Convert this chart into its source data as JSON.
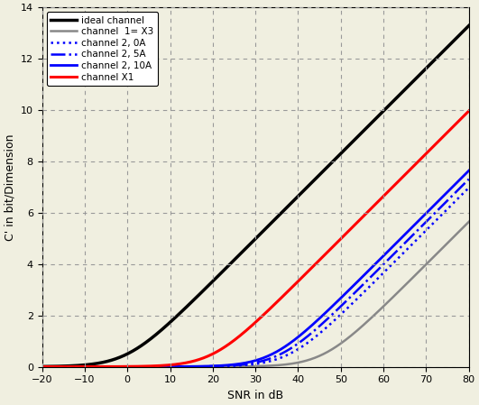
{
  "title": "",
  "xlabel": "SNR in dB",
  "ylabel": "C' in bit/Dimension",
  "xlim": [
    -20,
    80
  ],
  "ylim": [
    0,
    14
  ],
  "xticks": [
    -20,
    -10,
    0,
    10,
    20,
    30,
    40,
    50,
    60,
    70,
    80
  ],
  "yticks": [
    0,
    2,
    4,
    6,
    8,
    10,
    12,
    14
  ],
  "legend": [
    {
      "label": "ideal channel",
      "color": "#000000",
      "lw": 2.5,
      "ls": "solid",
      "loss_db": 0
    },
    {
      "label": "channel  1= X3",
      "color": "#888888",
      "lw": 1.8,
      "ls": "solid",
      "loss_db": 46
    },
    {
      "label": "channel 2, 0A",
      "color": "#0000ff",
      "lw": 1.8,
      "ls": "dotted",
      "loss_db": 38
    },
    {
      "label": "channel 2, 5A",
      "color": "#0000ff",
      "lw": 1.8,
      "ls": "dashdot",
      "loss_db": 36
    },
    {
      "label": "channel 2, 10A",
      "color": "#0000ff",
      "lw": 2.0,
      "ls": "solid",
      "loss_db": 34
    },
    {
      "label": "channel X1",
      "color": "#ff0000",
      "lw": 2.2,
      "ls": "solid",
      "loss_db": 20
    }
  ],
  "background_color": "#f0efe0",
  "grid_color": "#999999",
  "grid_ls": "--",
  "grid_lw": 0.8
}
